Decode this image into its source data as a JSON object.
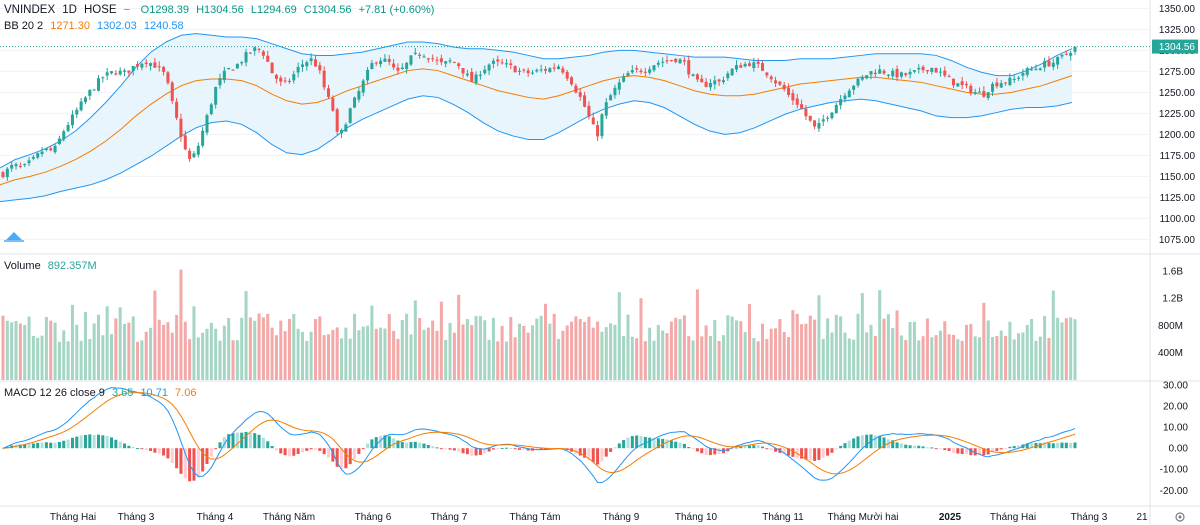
{
  "header": {
    "symbol": "VNINDEX",
    "interval": "1D",
    "exchange": "HOSE",
    "open": "O1298.39",
    "high": "H1304.56",
    "low": "L1294.69",
    "close": "C1304.56",
    "change": "+7.81 (+0.60%)"
  },
  "bb_legend": {
    "name": "BB 20 2",
    "basis": "1271.30",
    "upper": "1302.03",
    "lower": "1240.58"
  },
  "volume_legend": {
    "name": "Volume",
    "value": "892.357M"
  },
  "macd_legend": {
    "name": "MACD 12 26 close 9",
    "hist": "3.65",
    "macd": "10.71",
    "signal": "7.06"
  },
  "colors": {
    "up": "#26a69a",
    "down": "#ef5350",
    "basis": "#f57c00",
    "band": "#2196f3",
    "band_fill": "#e3f2fd"
  },
  "chart_data": [
    {
      "type": "candlestick",
      "title": "VNINDEX 1D HOSE",
      "x_tick_labels": [
        "Tháng Hai",
        "Tháng 3",
        "Tháng 4",
        "Tháng Năm",
        "Tháng 6",
        "Tháng 7",
        "Tháng Tám",
        "Tháng 9",
        "Tháng 10",
        "Tháng 11",
        "Tháng Mười hai",
        "2025",
        "Tháng Hai",
        "Tháng 3",
        "21"
      ],
      "y_ticks": [
        1075,
        1100,
        1125,
        1150,
        1175,
        1200,
        1225,
        1250,
        1275,
        1300,
        1325,
        1350
      ],
      "y_tick_labels": [
        "1075.00",
        "1100.00",
        "1125.00",
        "1150.00",
        "1175.00",
        "1200.00",
        "1225.00",
        "1250.00",
        "1275.00",
        "1300.00",
        "1325.00",
        "1350.00"
      ],
      "ylim": [
        1060,
        1360
      ],
      "last_price_label": "1304.56",
      "close_trajectory": [
        [
          0,
          1153
        ],
        [
          8,
          1163
        ],
        [
          16,
          1160
        ],
        [
          24,
          1170
        ],
        [
          32,
          1182
        ],
        [
          40,
          1180
        ],
        [
          48,
          1205
        ],
        [
          58,
          1228
        ],
        [
          68,
          1250
        ],
        [
          78,
          1268
        ],
        [
          88,
          1275
        ],
        [
          96,
          1273
        ],
        [
          104,
          1282
        ],
        [
          112,
          1288
        ],
        [
          120,
          1282
        ],
        [
          128,
          1270
        ],
        [
          134,
          1232
        ],
        [
          140,
          1200
        ],
        [
          146,
          1168
        ],
        [
          152,
          1178
        ],
        [
          160,
          1218
        ],
        [
          168,
          1258
        ],
        [
          176,
          1276
        ],
        [
          184,
          1282
        ],
        [
          192,
          1295
        ],
        [
          200,
          1303
        ],
        [
          206,
          1295
        ],
        [
          212,
          1273
        ],
        [
          220,
          1258
        ],
        [
          226,
          1265
        ],
        [
          234,
          1282
        ],
        [
          242,
          1290
        ],
        [
          248,
          1280
        ],
        [
          254,
          1250
        ],
        [
          260,
          1228
        ],
        [
          264,
          1192
        ],
        [
          268,
          1208
        ],
        [
          274,
          1232
        ],
        [
          280,
          1250
        ],
        [
          286,
          1270
        ],
        [
          292,
          1288
        ],
        [
          298,
          1290
        ],
        [
          304,
          1285
        ],
        [
          310,
          1272
        ],
        [
          316,
          1280
        ],
        [
          322,
          1292
        ],
        [
          330,
          1297
        ],
        [
          338,
          1290
        ],
        [
          346,
          1283
        ],
        [
          352,
          1287
        ],
        [
          358,
          1284
        ],
        [
          364,
          1272
        ],
        [
          370,
          1262
        ],
        [
          376,
          1275
        ],
        [
          384,
          1285
        ],
        [
          392,
          1284
        ],
        [
          400,
          1280
        ],
        [
          408,
          1274
        ],
        [
          416,
          1273
        ],
        [
          422,
          1276
        ],
        [
          430,
          1278
        ],
        [
          438,
          1282
        ],
        [
          444,
          1270
        ],
        [
          448,
          1262
        ],
        [
          452,
          1250
        ],
        [
          456,
          1240
        ],
        [
          460,
          1225
        ],
        [
          464,
          1210
        ],
        [
          468,
          1200
        ],
        [
          472,
          1225
        ],
        [
          476,
          1240
        ],
        [
          480,
          1250
        ],
        [
          486,
          1262
        ],
        [
          492,
          1272
        ],
        [
          498,
          1275
        ],
        [
          506,
          1278
        ],
        [
          514,
          1285
        ],
        [
          522,
          1288
        ],
        [
          530,
          1290
        ],
        [
          536,
          1286
        ],
        [
          540,
          1275
        ],
        [
          546,
          1262
        ],
        [
          552,
          1258
        ],
        [
          558,
          1264
        ],
        [
          564,
          1262
        ],
        [
          572,
          1275
        ],
        [
          580,
          1282
        ],
        [
          588,
          1285
        ],
        [
          596,
          1280
        ],
        [
          604,
          1270
        ],
        [
          610,
          1260
        ],
        [
          616,
          1252
        ],
        [
          620,
          1243
        ],
        [
          624,
          1240
        ],
        [
          628,
          1232
        ],
        [
          632,
          1222
        ],
        [
          636,
          1214
        ],
        [
          640,
          1205
        ],
        [
          646,
          1218
        ],
        [
          652,
          1228
        ],
        [
          658,
          1240
        ],
        [
          664,
          1252
        ],
        [
          670,
          1260
        ],
        [
          676,
          1266
        ],
        [
          682,
          1274
        ],
        [
          690,
          1276
        ],
        [
          698,
          1273
        ],
        [
          706,
          1270
        ],
        [
          714,
          1272
        ],
        [
          722,
          1276
        ],
        [
          730,
          1280
        ],
        [
          736,
          1275
        ],
        [
          742,
          1268
        ],
        [
          748,
          1262
        ],
        [
          754,
          1258
        ],
        [
          760,
          1254
        ],
        [
          766,
          1250
        ],
        [
          772,
          1248
        ],
        [
          778,
          1258
        ],
        [
          784,
          1262
        ],
        [
          790,
          1263
        ],
        [
          796,
          1265
        ],
        [
          804,
          1275
        ],
        [
          812,
          1278
        ],
        [
          820,
          1284
        ],
        [
          826,
          1285
        ],
        [
          832,
          1290
        ],
        [
          838,
          1297
        ],
        [
          844,
          1304.56
        ]
      ],
      "bollinger": {
        "basis": [
          1140,
          1146,
          1150,
          1155,
          1162,
          1170,
          1180,
          1192,
          1206,
          1222,
          1236,
          1248,
          1258,
          1264,
          1266,
          1266,
          1264,
          1258,
          1248,
          1240,
          1236,
          1238,
          1244,
          1252,
          1258,
          1264,
          1270,
          1276,
          1278,
          1276,
          1270,
          1264,
          1258,
          1252,
          1248,
          1244,
          1242,
          1246,
          1252,
          1258,
          1264,
          1268,
          1270,
          1268,
          1264,
          1258,
          1252,
          1248,
          1246,
          1246,
          1248,
          1252,
          1256,
          1260,
          1262,
          1264,
          1266,
          1268,
          1268,
          1266,
          1264,
          1262,
          1258,
          1254,
          1250,
          1248,
          1248,
          1250,
          1254,
          1258,
          1264,
          1270
        ],
        "band_width": [
          20,
          24,
          26,
          28,
          30,
          34,
          40,
          46,
          52,
          58,
          62,
          62,
          60,
          56,
          52,
          50,
          52,
          56,
          60,
          62,
          60,
          56,
          50,
          44,
          40,
          38,
          36,
          34,
          32,
          32,
          34,
          38,
          44,
          48,
          50,
          50,
          48,
          44,
          40,
          36,
          34,
          32,
          30,
          30,
          32,
          36,
          40,
          44,
          46,
          44,
          40,
          36,
          32,
          30,
          28,
          26,
          26,
          26,
          28,
          30,
          32,
          34,
          36,
          34,
          30,
          26,
          22,
          20,
          22,
          26,
          30,
          32
        ]
      }
    },
    {
      "type": "bar",
      "title": "Volume",
      "y_tick_labels": [
        "400M",
        "800M",
        "1.2B",
        "1.6B"
      ],
      "y_ticks": [
        400,
        800,
        1200,
        1600
      ],
      "ylim": [
        0,
        1820
      ],
      "last_value": "892.357M"
    },
    {
      "type": "line",
      "title": "MACD 12 26 close 9",
      "y_tick_labels": [
        "30.00",
        "20.00",
        "10.00",
        "0.00",
        "-10.00",
        "-20.00"
      ],
      "y_ticks": [
        30,
        20,
        10,
        0,
        -10,
        -20
      ],
      "ylim": [
        -27,
        31
      ],
      "last_values": {
        "histogram": 3.65,
        "macd": 10.71,
        "signal": 7.06
      }
    }
  ]
}
